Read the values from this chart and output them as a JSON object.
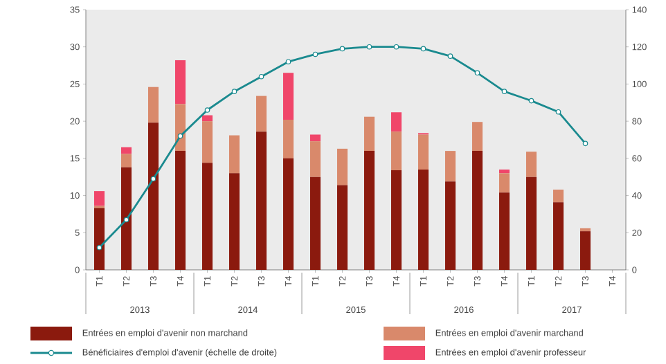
{
  "chart_data": {
    "type": "bar",
    "stacked": true,
    "categories": [
      "T1",
      "T2",
      "T3",
      "T4",
      "T1",
      "T2",
      "T3",
      "T4",
      "T1",
      "T2",
      "T3",
      "T4",
      "T1",
      "T2",
      "T3",
      "T4",
      "T1",
      "T2",
      "T3",
      "T4"
    ],
    "series": [
      {
        "name": "Entrées en emploi d'avenir non marchand",
        "color": "#8b1a0e",
        "values": [
          8.3,
          13.8,
          19.8,
          16.0,
          14.4,
          13.0,
          18.6,
          15.0,
          12.5,
          11.4,
          16.0,
          13.4,
          13.5,
          11.9,
          16.0,
          10.4,
          12.5,
          9.1,
          5.2,
          null
        ]
      },
      {
        "name": "Entrées en emploi d'avenir marchand",
        "color": "#d9896b",
        "values": [
          0.3,
          1.8,
          4.8,
          6.3,
          5.6,
          5.1,
          4.8,
          5.2,
          4.8,
          4.9,
          4.6,
          5.2,
          4.7,
          4.1,
          3.9,
          2.6,
          3.4,
          1.7,
          0.4,
          null
        ]
      },
      {
        "name": "Entrées en emploi d'avenir professeur",
        "color": "#f0466a",
        "values": [
          2.0,
          0.9,
          0,
          5.9,
          0.8,
          0,
          0,
          6.3,
          0.9,
          0,
          0,
          2.6,
          0.2,
          0,
          0,
          0.5,
          0,
          0,
          0,
          null
        ]
      },
      {
        "name": "Bénéficiaires d'emploi d'avenir (échelle de droite)",
        "type": "line",
        "axis": "y2",
        "color": "#1a8a8f",
        "marker": "circle",
        "values": [
          12,
          27,
          49,
          72,
          86,
          96,
          104,
          112,
          116,
          119,
          120,
          120,
          119,
          115,
          106,
          96,
          91,
          85,
          68,
          null
        ]
      }
    ],
    "ylim": [
      0,
      35
    ],
    "yticks": [
      0,
      5,
      10,
      15,
      20,
      25,
      30,
      35
    ],
    "y2lim": [
      0,
      140
    ],
    "y2ticks": [
      0,
      20,
      40,
      60,
      80,
      100,
      120,
      140
    ],
    "annotations": [
      "2013",
      "2014",
      "2015",
      "2016",
      "2017"
    ],
    "grid": false,
    "legend": "bottom"
  }
}
